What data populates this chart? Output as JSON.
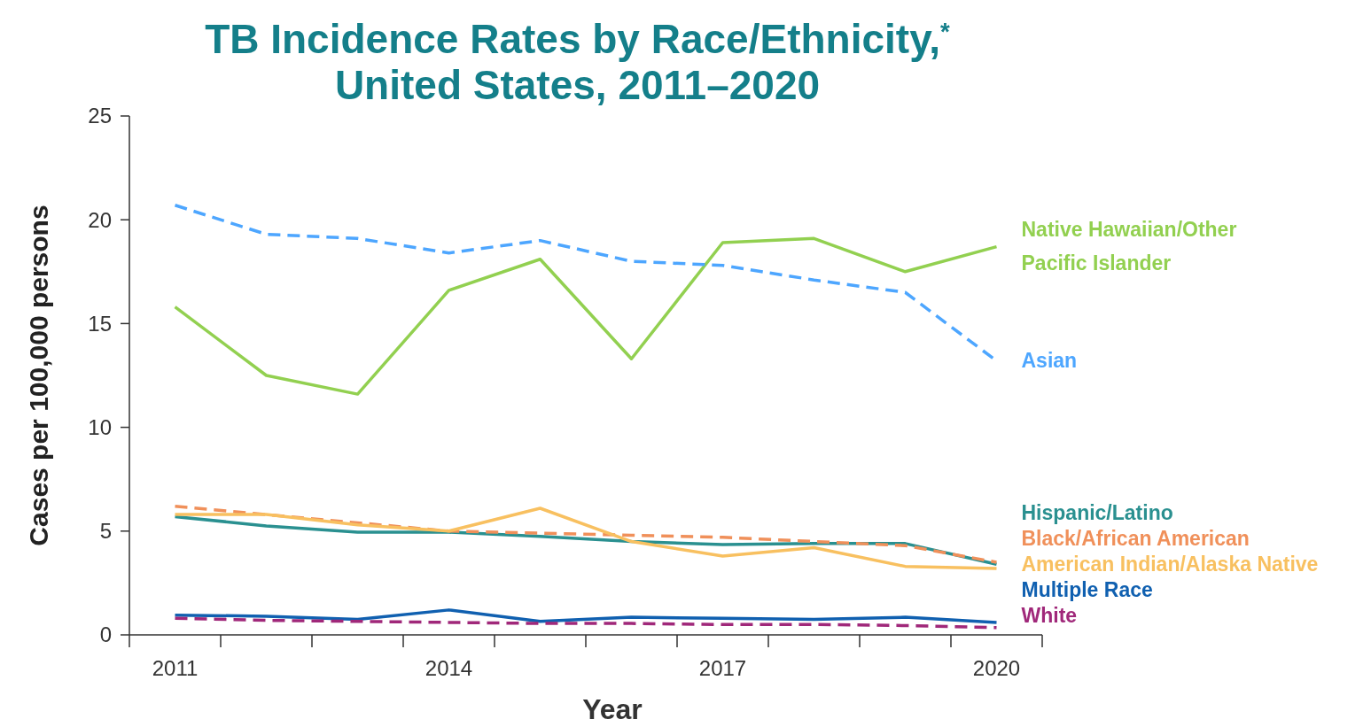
{
  "chart_data": {
    "type": "line",
    "title": "TB Incidence Rates by Race/Ethnicity,$^{*}$ United States, 2011–2020",
    "xlabel": "Year",
    "ylabel": "Cases per 100,000 persons",
    "x": [
      2011,
      2012,
      2013,
      2014,
      2015,
      2016,
      2017,
      2018,
      2019,
      2020
    ],
    "xlim": [
      2010.5,
      2020.5
    ],
    "xticks": [
      {
        "value": 2010.5,
        "label": null
      },
      2011,
      {
        "value": 2011.5,
        "label": null
      },
      {
        "value": 2012.5,
        "label": null
      },
      {
        "value": 2013.5,
        "label": null
      },
      2014,
      {
        "value": 2014.5,
        "label": null
      },
      {
        "value": 2015.5,
        "label": null
      },
      {
        "value": 2016.5,
        "label": null
      },
      2017,
      {
        "value": 2017.5,
        "label": null
      },
      {
        "value": 2018.5,
        "label": null
      },
      {
        "value": 2019.5,
        "label": null
      },
      2020,
      {
        "value": 2020.5,
        "label": null
      }
    ],
    "ylim": [
      0,
      25
    ],
    "yticks": [
      0,
      5,
      10,
      15,
      20,
      25
    ],
    "grid": false,
    "marker": "none",
    "series": [
      {
        "name": "Native Hawaiian/Other Pacific Islander",
        "color": "#92d050",
        "line_style": "solid",
        "values": [
          15.8,
          12.5,
          11.6,
          16.6,
          18.1,
          13.3,
          18.9,
          19.1,
          17.5,
          18.7
        ]
      },
      {
        "name": "Asian",
        "color": "#4da6ff",
        "line_style": "dashed",
        "values": [
          20.7,
          19.3,
          19.1,
          18.4,
          19.0,
          18.0,
          17.8,
          17.1,
          16.5,
          13.2
        ]
      },
      {
        "name": "Hispanic/Latino",
        "color": "#2a9090",
        "line_style": "solid",
        "values": [
          5.7,
          5.25,
          4.95,
          4.95,
          4.75,
          4.5,
          4.35,
          4.4,
          4.4,
          3.4
        ]
      },
      {
        "name": "Black/African American",
        "color": "#f0905a",
        "line_style": "dashed",
        "values": [
          6.2,
          5.8,
          5.4,
          5.0,
          4.9,
          4.8,
          4.7,
          4.5,
          4.3,
          3.5
        ]
      },
      {
        "name": "American Indian/Alaska Native",
        "color": "#f8c060",
        "line_style": "solid",
        "values": [
          5.8,
          5.8,
          5.3,
          5.0,
          6.1,
          4.5,
          3.8,
          4.2,
          3.3,
          3.2
        ]
      },
      {
        "name": "Multiple Race",
        "color": "#1060b0",
        "line_style": "solid",
        "values": [
          0.95,
          0.9,
          0.75,
          1.2,
          0.65,
          0.85,
          0.8,
          0.75,
          0.85,
          0.6
        ]
      },
      {
        "name": "White",
        "color": "#a0287a",
        "line_style": "dashed",
        "values": [
          0.8,
          0.7,
          0.65,
          0.6,
          0.55,
          0.55,
          0.5,
          0.5,
          0.45,
          0.35
        ]
      }
    ]
  }
}
